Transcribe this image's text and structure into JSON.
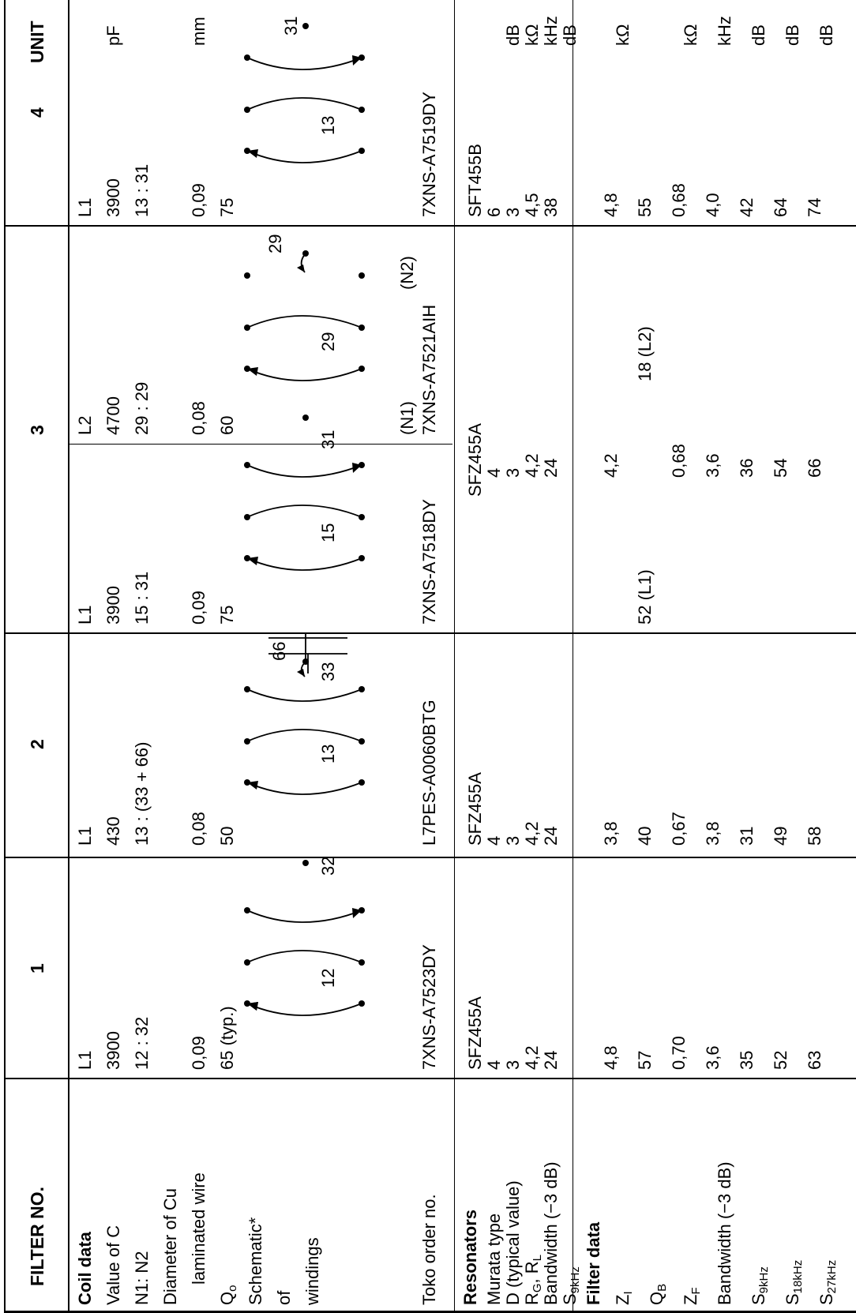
{
  "header": {
    "filter_no": "FILTER NO.",
    "col1": "1",
    "col2": "2",
    "col3": "3",
    "col4": "4",
    "unit": "UNIT"
  },
  "labels": {
    "coil_data": "Coil data",
    "value_of_c": "Value of C",
    "n1n2": "N1: N2",
    "diameter_1": "Diameter of Cu",
    "diameter_2": "laminated wire",
    "qo_main": "Q",
    "qo_sub": "o",
    "schematic_1": "Schematic*",
    "schematic_2": "of",
    "schematic_3": "windings",
    "toko": "Toko order no.",
    "resonators": "Resonators",
    "murata": "Murata type",
    "d_typical": "D (typical value)",
    "rg_main": "R",
    "rg_sub": "G",
    "rg_sep": ", R",
    "rl_sub": "L",
    "bandwidth": "Bandwidth (−3 dB)",
    "s_main": "S",
    "s9_sub": "9kHz",
    "filter_data": "Filter data",
    "zi_main": "Z",
    "zi_sub": "I",
    "qb_main": "Q",
    "qb_sub": "B",
    "zf_main": "Z",
    "zf_sub": "F",
    "bandwidth_f": "Bandwidth (−3 dB)",
    "s18_sub": "18kHz",
    "s27_sub": "27kHz"
  },
  "units": {
    "pf": "pF",
    "mm": "mm",
    "db": "dB",
    "kohm": "kΩ",
    "khz": "kHz"
  },
  "filters": {
    "f1": {
      "coil": "L1",
      "c": "3900",
      "n1n2": "12 : 32",
      "wire": "0,09",
      "qo": "65 (typ.)",
      "sch_a": "12",
      "sch_b": "32",
      "toko": "7XNS-A7523DY",
      "murata": "SFZ455A",
      "d": "4",
      "rgrl": "3",
      "bw": "4,2",
      "s9": "24",
      "zi": "4,8",
      "qb": "57",
      "zf": "0,70",
      "bwf": "3,6",
      "fs9": "35",
      "fs18": "52",
      "fs27": "63"
    },
    "f2": {
      "coil": "L1",
      "c": "430",
      "n1n2": "13 : (33 + 66)",
      "wire": "0,08",
      "qo": "50",
      "sch_a": "13",
      "sch_b": "66",
      "sch_c": "33",
      "toko": "L7PES-A0060BTG",
      "murata": "SFZ455A",
      "d": "4",
      "rgrl": "3",
      "bw": "4,2",
      "s9": "24",
      "zi": "3,8",
      "qb": "40",
      "zf": "0,67",
      "bwf": "3,8",
      "fs9": "31",
      "fs18": "49",
      "fs27": "58"
    },
    "f3": {
      "l1": {
        "coil": "L1",
        "c": "3900",
        "n1n2": "15 : 31",
        "wire": "0,09",
        "qo": "75",
        "sch_a": "15",
        "sch_b": "31",
        "toko": "7XNS-A7518DY"
      },
      "l2": {
        "coil": "L2",
        "c": "4700",
        "n1n2": "29 : 29",
        "wire": "0,08",
        "qo": "60",
        "sch_a": "29",
        "sch_b": "29",
        "n1": "(N1)",
        "n2": "(N2)",
        "toko": "7XNS-A7521AIH"
      },
      "murata": "SFZ455A",
      "d": "4",
      "rgrl": "3",
      "bw": "4,2",
      "s9": "24",
      "zi": "4,2",
      "qb_l1": "52 (L1)",
      "qb_l2": "18 (L2)",
      "zf": "0,68",
      "bwf": "3,6",
      "fs9": "36",
      "fs18": "54",
      "fs27": "66"
    },
    "f4": {
      "coil": "L1",
      "c": "3900",
      "n1n2": "13 : 31",
      "wire": "0,09",
      "qo": "75",
      "sch_a": "13",
      "sch_b": "31",
      "toko": "7XNS-A7519DY",
      "murata": "SFT455B",
      "d": "6",
      "rgrl": "3",
      "bw": "4,5",
      "s9": "38",
      "zi": "4,8",
      "qb": "55",
      "zf": "0,68",
      "bwf": "4,0",
      "fs9": "42",
      "fs18": "64",
      "fs27": "74"
    }
  }
}
